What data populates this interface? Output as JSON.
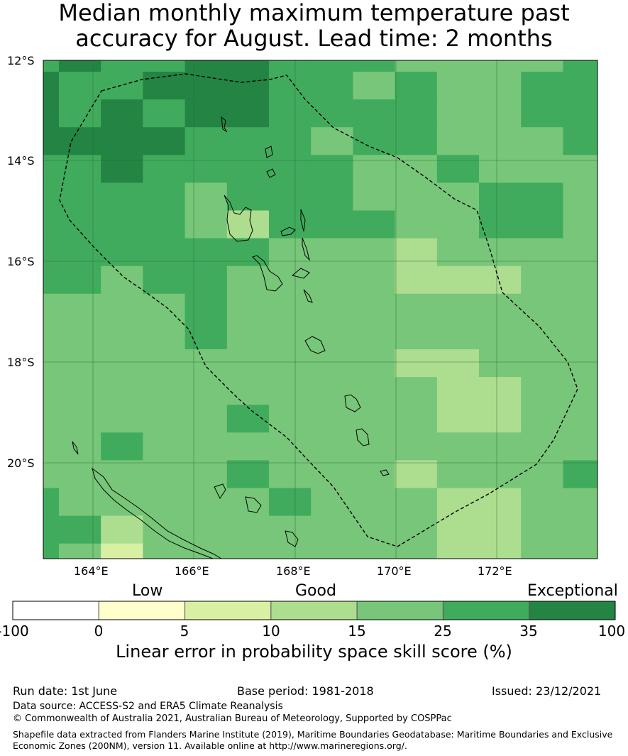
{
  "title": {
    "line1": "Median monthly maximum temperature past",
    "line2": "accuracy for August. Lead time: 2 months"
  },
  "map": {
    "lat_ticks": [
      "12°S",
      "14°S",
      "16°S",
      "18°S",
      "20°S"
    ],
    "lon_ticks": [
      "164°E",
      "166°E",
      "168°E",
      "170°E",
      "172°E"
    ],
    "grid_colors": {
      "0": "#ffffcc",
      "1": "#d9f0a3",
      "2": "#addd8e",
      "3": "#78c679",
      "4": "#41ab5d",
      "5": "#238443"
    },
    "grid": [
      [
        4,
        5,
        4,
        4,
        5,
        5,
        4,
        4,
        4,
        3,
        3,
        3,
        3,
        4,
        5
      ],
      [
        5,
        4,
        4,
        5,
        5,
        5,
        4,
        4,
        3,
        4,
        3,
        3,
        4,
        4,
        5
      ],
      [
        5,
        4,
        5,
        4,
        5,
        5,
        4,
        4,
        4,
        4,
        3,
        3,
        4,
        4,
        4
      ],
      [
        5,
        5,
        5,
        5,
        4,
        4,
        4,
        3,
        4,
        4,
        3,
        3,
        3,
        4,
        3
      ],
      [
        4,
        4,
        5,
        4,
        4,
        4,
        4,
        4,
        3,
        3,
        4,
        3,
        3,
        3,
        4
      ],
      [
        4,
        4,
        4,
        4,
        3,
        4,
        4,
        4,
        3,
        3,
        3,
        4,
        4,
        3,
        4
      ],
      [
        4,
        4,
        4,
        4,
        3,
        2,
        4,
        4,
        4,
        3,
        3,
        4,
        4,
        3,
        4
      ],
      [
        4,
        4,
        4,
        4,
        4,
        4,
        3,
        3,
        3,
        2,
        3,
        3,
        3,
        3,
        3
      ],
      [
        4,
        4,
        3,
        4,
        4,
        3,
        3,
        3,
        3,
        2,
        2,
        2,
        3,
        3,
        3
      ],
      [
        3,
        3,
        3,
        3,
        4,
        3,
        3,
        3,
        3,
        3,
        3,
        3,
        3,
        3,
        3
      ],
      [
        3,
        3,
        3,
        3,
        4,
        3,
        3,
        3,
        3,
        3,
        3,
        3,
        3,
        3,
        3
      ],
      [
        3,
        3,
        3,
        3,
        3,
        3,
        3,
        3,
        3,
        2,
        2,
        3,
        3,
        3,
        3
      ],
      [
        3,
        3,
        3,
        3,
        3,
        3,
        3,
        3,
        3,
        3,
        2,
        2,
        3,
        3,
        3
      ],
      [
        3,
        3,
        3,
        3,
        3,
        4,
        3,
        3,
        3,
        3,
        2,
        2,
        3,
        3,
        3
      ],
      [
        3,
        3,
        4,
        3,
        3,
        3,
        3,
        3,
        3,
        3,
        3,
        3,
        3,
        3,
        3
      ],
      [
        3,
        3,
        3,
        3,
        3,
        4,
        3,
        3,
        3,
        2,
        3,
        3,
        3,
        4,
        3
      ],
      [
        4,
        3,
        3,
        3,
        3,
        3,
        4,
        3,
        3,
        3,
        2,
        2,
        3,
        3,
        3
      ],
      [
        4,
        4,
        2,
        3,
        3,
        3,
        3,
        3,
        3,
        3,
        2,
        2,
        3,
        3,
        3
      ],
      [
        4,
        3,
        1,
        3,
        3,
        3,
        3,
        3,
        3,
        3,
        2,
        2,
        3,
        3,
        2
      ]
    ]
  },
  "colorbar": {
    "category_labels": [
      "Low",
      "Good",
      "Exceptional"
    ],
    "ticks": [
      "-100",
      "0",
      "5",
      "10",
      "15",
      "25",
      "35",
      "100"
    ],
    "colors": [
      "#ffffff",
      "#ffffcc",
      "#d9f0a3",
      "#addd8e",
      "#78c679",
      "#41ab5d",
      "#238443"
    ],
    "title": "Linear error in probability space skill score (%)"
  },
  "footer": {
    "run_date": "Run date: 1st June",
    "base_period": "Base period: 1981-2018",
    "issued": "Issued: 23/12/2021",
    "data_source": "Data source: ACCESS-S2 and ERA5 Climate Reanalysis",
    "copyright": "© Commonwealth of Australia 2021, Australian Bureau of Meteorology, Supported by COSPPac",
    "shapefile_line1": "Shapefile data extracted from Flanders Marine Institute (2019), Maritime Boundaries Geodatabase: Maritime Boundaries and Exclusive",
    "shapefile_line2": "Economic Zones (200NM), version 11. Available online at http://www.marineregions.org/."
  }
}
